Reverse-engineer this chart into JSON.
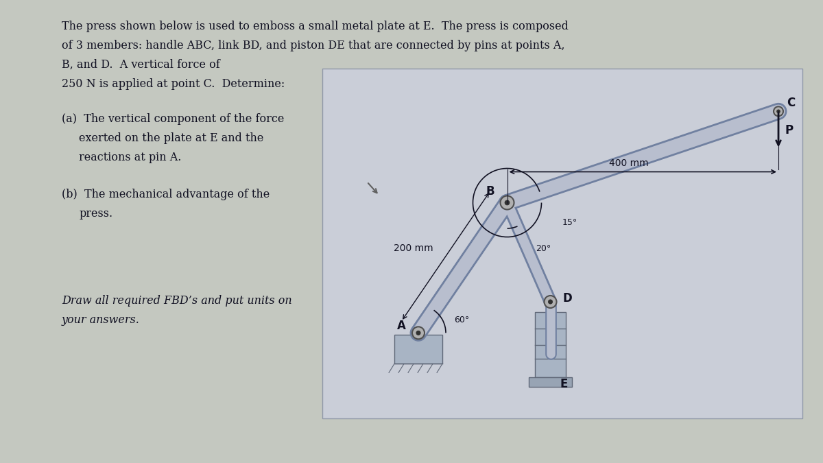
{
  "bg_color": "#c4c8c0",
  "left_bg": "#c4c8c0",
  "diagram_bg": "#c8cdd8",
  "diagram_inner_bg": "#c8ccd8",
  "member_color": "#b8bece",
  "member_edge": "#7080a0",
  "pin_face": "#909090",
  "pin_edge": "#505050",
  "support_color": "#a8b4c4",
  "support_edge": "#606878",
  "text_color": "#111122",
  "dim_color": "#111122",
  "label_A": "A",
  "label_B": "B",
  "label_C": "C",
  "label_D": "D",
  "label_E": "E",
  "label_P": "P",
  "dim_400": "400 mm",
  "dim_200": "200 mm",
  "angle_60": "60°",
  "angle_15": "15°",
  "angle_20": "20°",
  "title_line1": "The press shown below is used to emboss a small metal plate at E.  The press is composed",
  "title_line2": "of 3 members: handle ABC, link BD, and piston DE that are connected by pins at points A,",
  "title_line3": "B, and D.  A vertical force of",
  "title_line4": "250 N is applied at point C.  Determine:",
  "part_a1": "(a)  The vertical component of the force",
  "part_a2": "      exerted on the plate at E and the",
  "part_a3": "      reactions at pin A.",
  "part_b1": "(b)  The mechanical advantage of the",
  "part_b2": "      press.",
  "italic1": "Draw all required FBD’s and put units on",
  "italic2": "your answers."
}
